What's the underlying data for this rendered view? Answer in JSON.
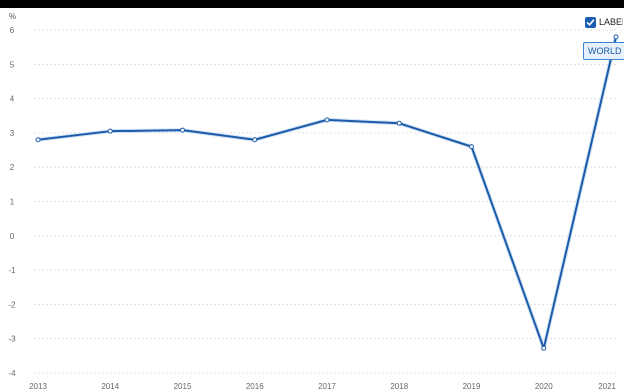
{
  "chart_data": {
    "type": "line",
    "unit_label": "%",
    "x": [
      "2013",
      "2014",
      "2015",
      "2016",
      "2017",
      "2018",
      "2019",
      "2020",
      "2021"
    ],
    "series": [
      {
        "name": "WORLD",
        "values": [
          2.8,
          3.05,
          3.08,
          2.8,
          3.38,
          3.28,
          2.6,
          -3.28,
          5.8
        ]
      }
    ],
    "yticks": [
      "6",
      "5",
      "4",
      "3",
      "2",
      "1",
      "0",
      "-1",
      "-2",
      "-3",
      "-4"
    ],
    "ylim": [
      -4,
      6
    ],
    "grid": true,
    "line_color": "#1d5ba8"
  },
  "controls": {
    "labels_toggle": "LABEL",
    "labels_checked": true
  }
}
